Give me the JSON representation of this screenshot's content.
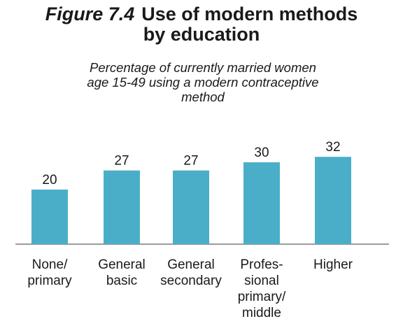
{
  "header": {
    "figure_label": "Figure 7.4",
    "title_line1": "Use of modern methods",
    "title_line2": "by education",
    "subtitle_lines": [
      "Percentage of currently married women",
      "age 15-49 using a modern contraceptive",
      "method"
    ]
  },
  "chart_data": {
    "type": "bar",
    "title": "Use of modern methods by education",
    "subtitle": "Percentage of currently married women age 15-49 using a modern contraceptive method",
    "categories": [
      [
        "None/",
        "primary"
      ],
      [
        "General",
        "basic"
      ],
      [
        "General",
        "secondary"
      ],
      [
        "Profes-",
        "sional",
        "primary/",
        "middle"
      ],
      [
        "Higher"
      ]
    ],
    "values": [
      20,
      27,
      27,
      30,
      32
    ],
    "bar_color": "#4aaec8",
    "axis_color": "#7a7a7a",
    "ylim": [
      0,
      40
    ],
    "grid": false,
    "legend": "none"
  }
}
